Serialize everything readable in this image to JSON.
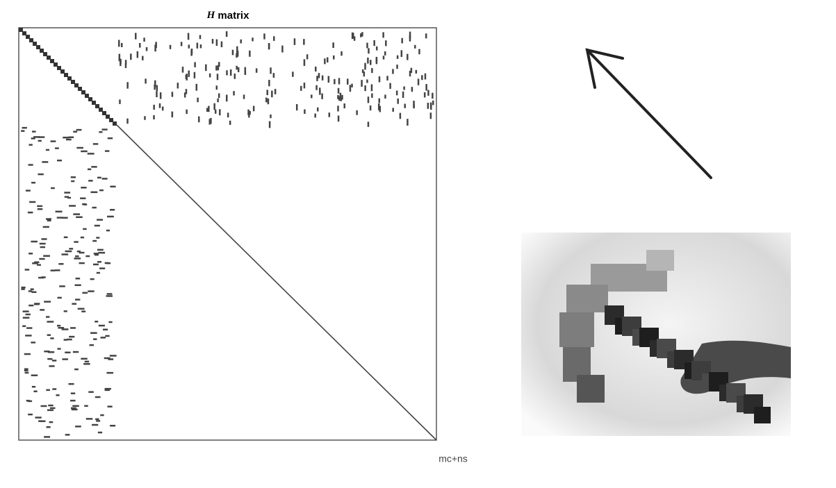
{
  "figure": {
    "title_var": "H",
    "title_rest": "matrix",
    "corner_label": "mc+ns"
  }
}
